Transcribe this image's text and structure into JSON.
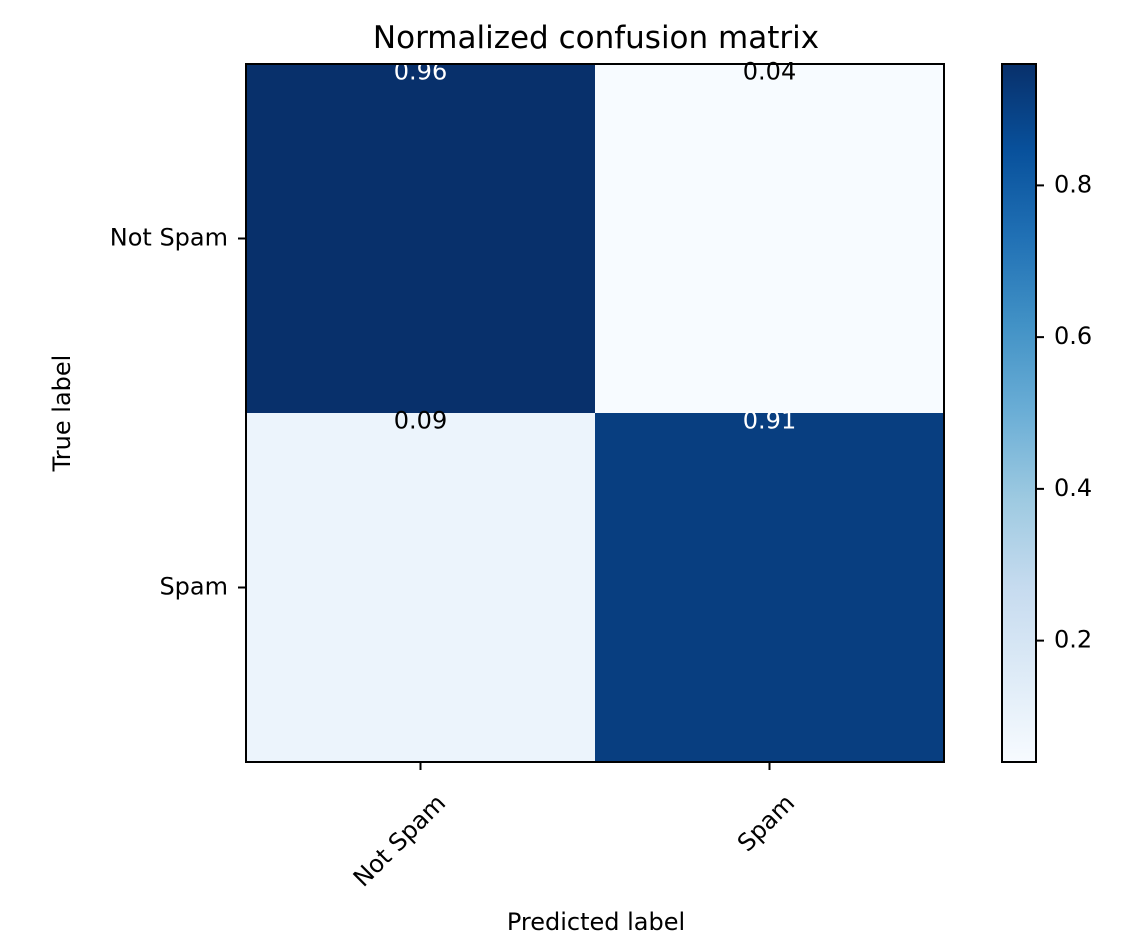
{
  "chart_data": {
    "type": "heatmap",
    "title": "Normalized confusion matrix",
    "xlabel": "Predicted label",
    "ylabel": "True label",
    "x_categories": [
      "Not Spam",
      "Spam"
    ],
    "y_categories": [
      "Not Spam",
      "Spam"
    ],
    "values": [
      [
        0.96,
        0.04
      ],
      [
        0.09,
        0.91
      ]
    ],
    "cell_labels": [
      [
        "0.96",
        "0.04"
      ],
      [
        "0.09",
        "0.91"
      ]
    ],
    "colormap": "Blues",
    "colorbar": {
      "range": [
        0.04,
        0.96
      ],
      "ticks": [
        0.2,
        0.4,
        0.6,
        0.8
      ],
      "tick_labels": [
        "0.2",
        "0.4",
        "0.6",
        "0.8"
      ]
    },
    "grid": false,
    "x_tick_rotation_deg": 45
  }
}
